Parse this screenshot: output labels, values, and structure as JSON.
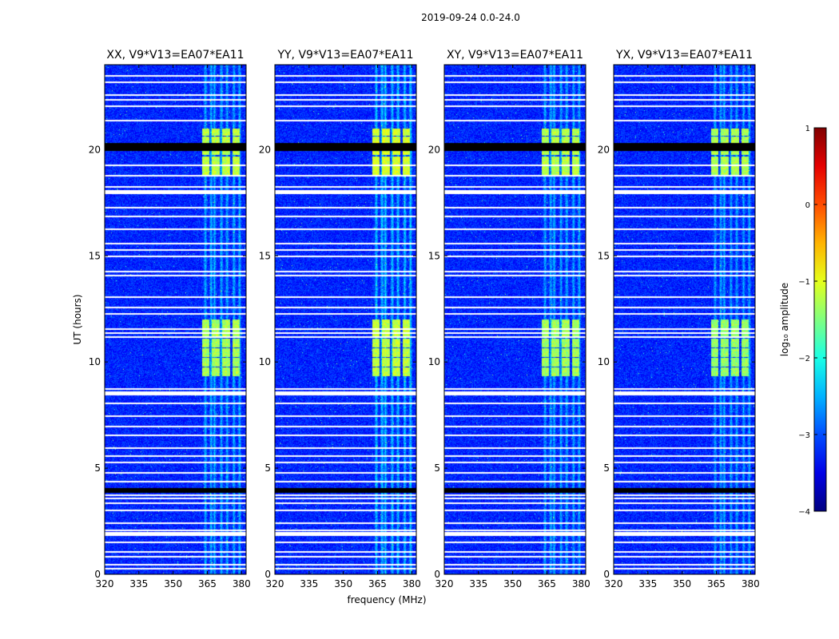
{
  "chart_data": {
    "type": "heatmap",
    "suptitle": "2019-09-24 0.0-24.0",
    "xlabel": "frequency (MHz)",
    "ylabel": "UT (hours)",
    "xlim": [
      320,
      382
    ],
    "ylim": [
      0,
      24
    ],
    "xticks": [
      320,
      335,
      350,
      365,
      380
    ],
    "yticks": [
      0,
      5,
      10,
      15,
      20
    ],
    "panels": [
      {
        "title": "XX, V9*V13=EA07*EA11",
        "strength": 1.0,
        "shift": 0
      },
      {
        "title": "YY, V9*V13=EA07*EA11",
        "strength": 1.15,
        "shift": 1
      },
      {
        "title": "XY, V9*V13=EA07*EA11",
        "strength": 0.95,
        "shift": 0
      },
      {
        "title": "YX, V9*V13=EA07*EA11",
        "strength": 0.9,
        "shift": 1
      }
    ],
    "rfi_channels_MHz": [
      364,
      366.5,
      368,
      371,
      373.5,
      376.5,
      379
    ],
    "bright_rfi_blocks": [
      {
        "t_start": 9.3,
        "t_end": 12.0,
        "f_start": 362,
        "f_end": 380,
        "log_amp": -1.3
      },
      {
        "t_start": 18.8,
        "t_end": 21.0,
        "f_start": 362,
        "f_end": 380,
        "log_amp": -1.2
      }
    ],
    "flagged_hours_white": [
      0.3,
      0.5,
      0.85,
      1.1,
      1.55,
      2.0,
      2.1,
      2.45,
      3.05,
      3.4,
      3.6,
      3.75,
      4.4,
      4.8,
      5.3,
      5.6,
      6.0,
      6.6,
      7.0,
      7.5,
      8.1,
      8.5,
      8.6,
      8.75,
      11.2,
      11.4,
      11.6,
      12.3,
      12.6,
      13.1,
      14.1,
      14.3,
      15.0,
      15.3,
      15.6,
      16.3,
      16.9,
      17.3,
      18.1,
      18.3,
      18.8,
      19.3,
      21.4,
      22.1,
      22.4,
      22.6,
      23.2,
      23.5
    ],
    "flagged_hours_black": [
      3.95,
      4.05,
      20.3
    ],
    "colorbar": {
      "label": "log₁₀ amplitude",
      "range": [
        -4,
        1
      ],
      "ticks": [
        "1",
        "0",
        "−1",
        "−2",
        "−3",
        "−4"
      ],
      "colormap": "jet"
    }
  }
}
